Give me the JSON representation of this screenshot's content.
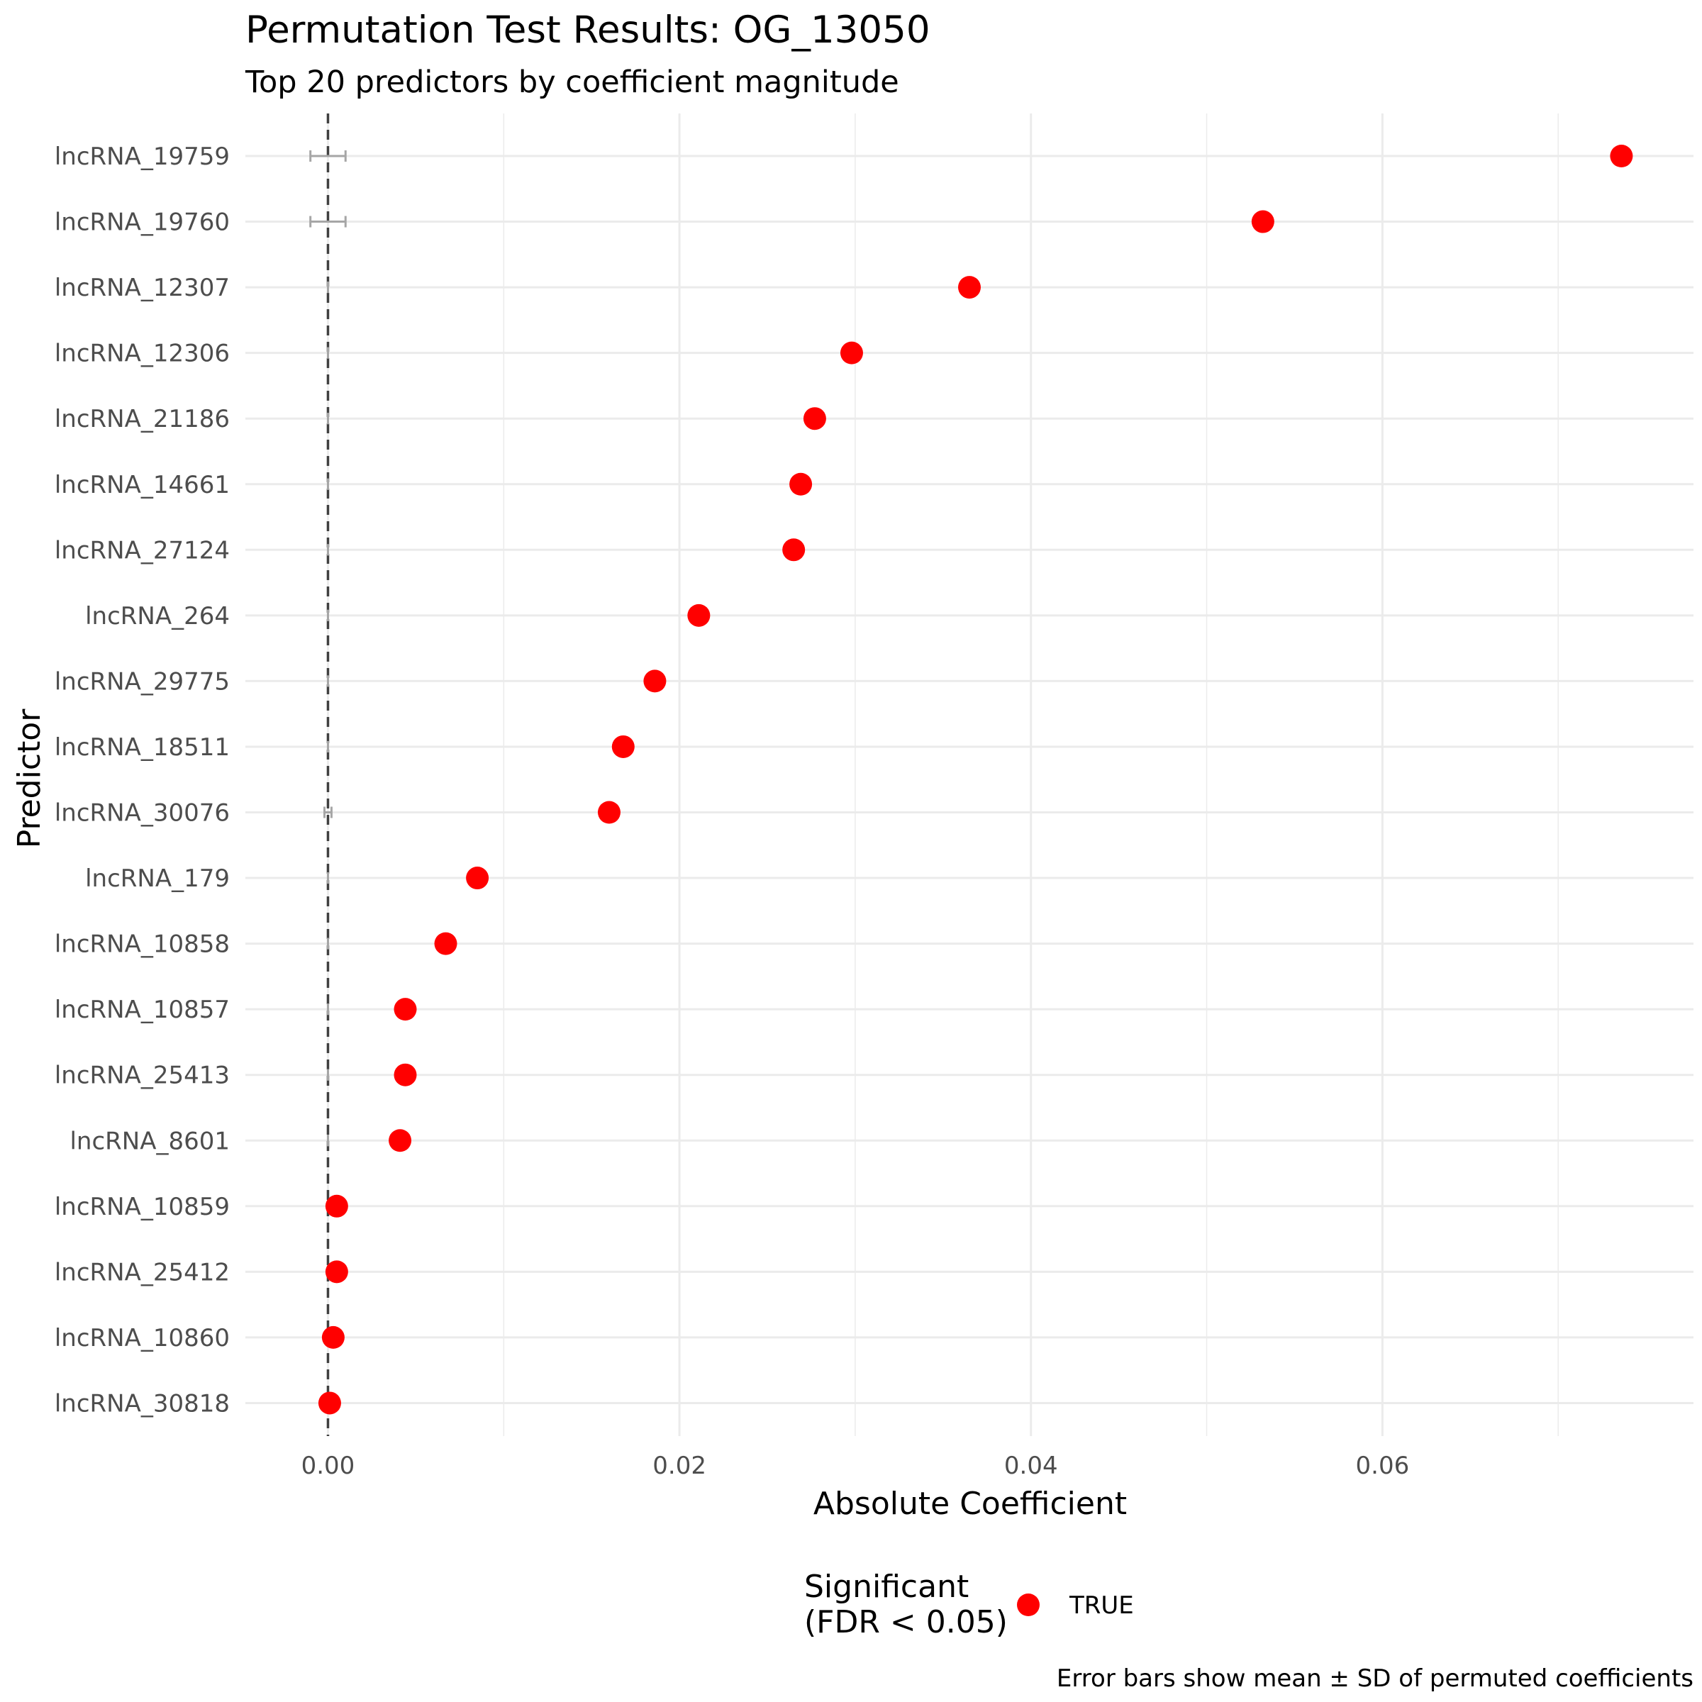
{
  "chart_data": {
    "type": "scatter",
    "title": "Permutation Test Results: OG_13050",
    "subtitle": "Top 20 predictors by coefficient magnitude",
    "xlabel": "Absolute Coefficient",
    "ylabel": "Predictor",
    "xlim": [
      -0.0047,
      0.0777
    ],
    "x_ticks": [
      0.0,
      0.02,
      0.04,
      0.06
    ],
    "x_tick_labels": [
      "0.00",
      "0.02",
      "0.04",
      "0.06"
    ],
    "reference_line": 0.0,
    "grid": true,
    "legend_position": "bottom",
    "legend": {
      "title": "Significant\n(FDR < 0.05)",
      "entries": [
        {
          "label": "TRUE",
          "color": "#ff0000"
        }
      ]
    },
    "caption": "Error bars show mean ± SD of permuted coefficients",
    "colors": {
      "point": "#ff0000",
      "errorbar": "#a6a6a6",
      "reference_line": "#404040",
      "grid": "#ebebeb"
    },
    "points": [
      {
        "predictor": "lncRNA_19759",
        "value": 0.0736,
        "perm_mean": 0.0,
        "perm_sd": 0.001,
        "significant": "TRUE"
      },
      {
        "predictor": "lncRNA_19760",
        "value": 0.0532,
        "perm_mean": 0.0,
        "perm_sd": 0.001,
        "significant": "TRUE"
      },
      {
        "predictor": "lncRNA_12307",
        "value": 0.0365,
        "perm_mean": 0.0,
        "perm_sd": 0.0,
        "significant": "TRUE"
      },
      {
        "predictor": "lncRNA_12306",
        "value": 0.0298,
        "perm_mean": 0.0,
        "perm_sd": 0.0,
        "significant": "TRUE"
      },
      {
        "predictor": "lncRNA_21186",
        "value": 0.0277,
        "perm_mean": 0.0,
        "perm_sd": 0.0,
        "significant": "TRUE"
      },
      {
        "predictor": "lncRNA_14661",
        "value": 0.0269,
        "perm_mean": 0.0,
        "perm_sd": 0.0,
        "significant": "TRUE"
      },
      {
        "predictor": "lncRNA_27124",
        "value": 0.0265,
        "perm_mean": 0.0,
        "perm_sd": 0.0,
        "significant": "TRUE"
      },
      {
        "predictor": "lncRNA_264",
        "value": 0.0211,
        "perm_mean": 0.0,
        "perm_sd": 0.0,
        "significant": "TRUE"
      },
      {
        "predictor": "lncRNA_29775",
        "value": 0.0186,
        "perm_mean": 0.0,
        "perm_sd": 0.0,
        "significant": "TRUE"
      },
      {
        "predictor": "lncRNA_18511",
        "value": 0.0168,
        "perm_mean": 0.0,
        "perm_sd": 0.0,
        "significant": "TRUE"
      },
      {
        "predictor": "lncRNA_30076",
        "value": 0.016,
        "perm_mean": 0.0,
        "perm_sd": 0.0002,
        "significant": "TRUE"
      },
      {
        "predictor": "lncRNA_179",
        "value": 0.0085,
        "perm_mean": 0.0,
        "perm_sd": 0.0,
        "significant": "TRUE"
      },
      {
        "predictor": "lncRNA_10858",
        "value": 0.0067,
        "perm_mean": 0.0,
        "perm_sd": 0.0,
        "significant": "TRUE"
      },
      {
        "predictor": "lncRNA_10857",
        "value": 0.0044,
        "perm_mean": 0.0,
        "perm_sd": 0.0,
        "significant": "TRUE"
      },
      {
        "predictor": "lncRNA_25413",
        "value": 0.0044,
        "perm_mean": 0.0,
        "perm_sd": 0.0,
        "significant": "TRUE"
      },
      {
        "predictor": "lncRNA_8601",
        "value": 0.0041,
        "perm_mean": 0.0,
        "perm_sd": 0.0,
        "significant": "TRUE"
      },
      {
        "predictor": "lncRNA_10859",
        "value": 0.0005,
        "perm_mean": 0.0,
        "perm_sd": 0.0,
        "significant": "TRUE"
      },
      {
        "predictor": "lncRNA_25412",
        "value": 0.0005,
        "perm_mean": 0.0,
        "perm_sd": 0.0,
        "significant": "TRUE"
      },
      {
        "predictor": "lncRNA_10860",
        "value": 0.0003,
        "perm_mean": 0.0,
        "perm_sd": 0.0,
        "significant": "TRUE"
      },
      {
        "predictor": "lncRNA_30818",
        "value": 0.0001,
        "perm_mean": 0.0,
        "perm_sd": 0.0,
        "significant": "TRUE"
      }
    ]
  }
}
